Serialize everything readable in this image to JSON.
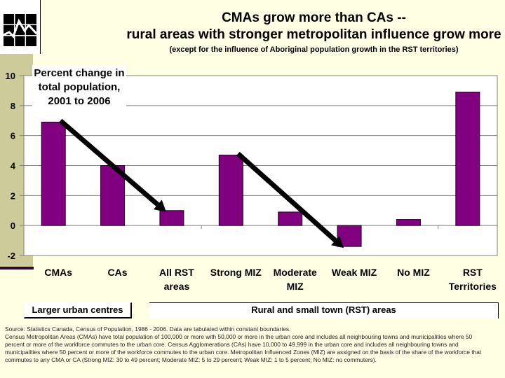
{
  "header": {
    "title_line1": "CMAs grow more than CAs --",
    "title_line2": "rural areas with stronger metropolitan influence grow more",
    "subtitle": "(except for the influence of Aboriginal population growth in the RST territories)",
    "logo_icon": "statistics-canada-logo-icon"
  },
  "chart_data": {
    "type": "bar",
    "title": "CMAs grow more than CAs -- rural areas with stronger metropolitan influence grow more",
    "ylabel": "Percent change in total population, 2001 to 2006",
    "xlabel": "",
    "categories": [
      "CMAs",
      "CAs",
      "All RST areas",
      "Strong MIZ",
      "Moderate MIZ",
      "Weak MIZ",
      "No MIZ",
      "RST Territories"
    ],
    "category_lines": [
      [
        "CMAs"
      ],
      [
        "CAs"
      ],
      [
        "All RST",
        "areas"
      ],
      [
        "Strong MIZ"
      ],
      [
        "Moderate",
        "MIZ"
      ],
      [
        "Weak MIZ"
      ],
      [
        "No MIZ"
      ],
      [
        "RST",
        "Territories"
      ]
    ],
    "values": [
      6.9,
      4.0,
      1.0,
      4.7,
      0.9,
      -1.4,
      0.4,
      8.9
    ],
    "ylim": [
      -2,
      10
    ],
    "yticks": [
      -2,
      0,
      2,
      4,
      6,
      8,
      10
    ],
    "grid": true,
    "bar_color": "#800080",
    "annotations": [
      {
        "type": "arrow",
        "from_category": "CMAs",
        "to_category": "All RST areas"
      },
      {
        "type": "arrow",
        "from_category": "Strong MIZ",
        "to_category": "Weak MIZ"
      }
    ],
    "groups": [
      {
        "label": "Larger urban centres",
        "categories": [
          "CMAs",
          "CAs"
        ]
      },
      {
        "label": "Rural and small town (RST) areas",
        "categories": [
          "All RST areas",
          "Strong MIZ",
          "Moderate MIZ",
          "Weak MIZ",
          "No MIZ",
          "RST Territories"
        ]
      }
    ]
  },
  "ylabel_lines": [
    "Percent change in",
    "total population,",
    "2001 to 2006"
  ],
  "groups": {
    "urban": "Larger urban centres",
    "rst": "Rural and small town (RST) areas"
  },
  "source": {
    "line1": "Source: Statistics Canada, Census of Population, 1986 - 2006. Data are tabulated within constant boundaries.",
    "line2": "Census Metropolitan Areas (CMAs) have total population of 100,000 or more with 50,000 or more in the urban core and includes all neighbouring towns and municipalities where 50",
    "line3": "percent or more of the workforce commutes to the urban core. Census Agglomerations (CAs) have 10,000 to 49,999 in the urban core and includes all neighbouring towns and",
    "line4": "municipalities where 50 percent or more of the workforce commutes to the urban core. Metropolitan Influenced Zones (MIZ) are assigned on the basis of the share of the workforce that",
    "line5": "commutes to any CMA or CA (Strong MIZ: 30 to 49 percent; Moderate MIZ: 5 to 29 percent; Weak MIZ: 1 to 5 percent; No MIZ: no commuters)."
  }
}
